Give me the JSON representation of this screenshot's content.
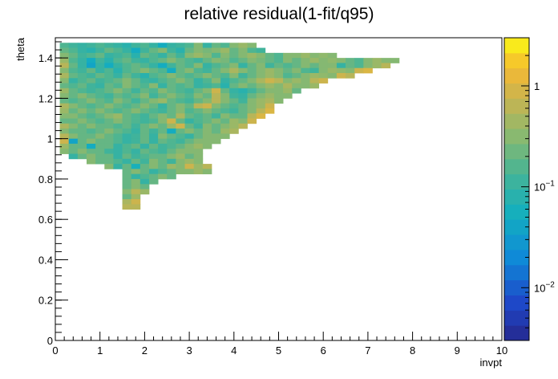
{
  "chart_data": {
    "type": "heatmap",
    "title": "relative residual(1-fit/q95)",
    "xlabel": "invpt",
    "ylabel": "theta",
    "xlim": [
      0,
      10
    ],
    "ylim": [
      0,
      1.5
    ],
    "x_ticks": [
      "0",
      "1",
      "2",
      "3",
      "4",
      "5",
      "6",
      "7",
      "8",
      "9",
      "10"
    ],
    "y_ticks": [
      "0",
      "0.2",
      "0.4",
      "0.6",
      "0.8",
      "1",
      "1.2",
      "1.4"
    ],
    "colorbar": {
      "scale": "log",
      "range": [
        0.003,
        3
      ],
      "tick_labels": [
        "10^-2",
        "10^-1",
        "1"
      ],
      "tick_values": [
        0.01,
        0.1,
        1
      ]
    },
    "grid": false,
    "cells": {
      "x_bin_width": 0.2,
      "y_bin_width": 0.025,
      "rows": [
        {
          "y": 1.45,
          "x_start": 0.1,
          "values": [
            0.15,
            0.12,
            0.1,
            0.12,
            0.15,
            0.12,
            0.1,
            0.08,
            0.12,
            0.15,
            0.1,
            0.05,
            0.1,
            0.12,
            0.15,
            0.3,
            0.1,
            0.2,
            0.15,
            0.3,
            0.4,
            0.3
          ]
        },
        {
          "y": 1.425,
          "x_start": 0.1,
          "values": [
            0.2,
            0.15,
            0.1,
            0.08,
            0.12,
            0.2,
            0.15,
            0.1,
            0.05,
            0.12,
            0.2,
            0.3,
            0.12,
            0.08,
            0.2,
            0.3,
            0.25,
            0.3,
            0.4,
            0.2,
            0.3,
            0.15,
            0.12
          ]
        },
        {
          "y": 1.4,
          "x_start": 0.1,
          "values": [
            0.3,
            0.2,
            0.12,
            0.15,
            0.2,
            0.1,
            0.12,
            0.15,
            0.08,
            0.2,
            0.15,
            0.1,
            0.2,
            0.12,
            0.3,
            0.4,
            0.3,
            0.15,
            0.3,
            0.2,
            0.3,
            0.4,
            0.3,
            0.2,
            0.15,
            0.3,
            0.3,
            0.4,
            0.3,
            0.35,
            0.3
          ]
        },
        {
          "y": 1.375,
          "x_start": 0.1,
          "values": [
            0.4,
            0.15,
            0.1,
            0.05,
            0.12,
            0.08,
            0.15,
            0.2,
            0.12,
            0.1,
            0.15,
            0.2,
            0.3,
            0.2,
            0.15,
            0.12,
            0.2,
            0.3,
            0.25,
            0.15,
            0.2,
            0.3,
            0.25,
            0.2,
            0.15,
            0.3,
            0.2,
            0.3,
            0.4,
            0.3,
            0.35,
            0.3,
            0.2,
            0.15,
            0.3,
            0.4,
            0.3,
            0.3
          ]
        },
        {
          "y": 1.35,
          "x_start": 0.1,
          "values": [
            0.6,
            0.2,
            0.1,
            0.04,
            0.1,
            0.05,
            0.1,
            0.15,
            0.2,
            0.15,
            0.1,
            0.05,
            0.12,
            0.2,
            0.15,
            0.3,
            0.1,
            0.15,
            0.2,
            0.3,
            0.1,
            0.2,
            0.3,
            0.12,
            0.2,
            0.15,
            0.2,
            0.3,
            0.2,
            0.3,
            0.3,
            0.1,
            0.2,
            0.15,
            0.3,
            0.4,
            0.6
          ]
        },
        {
          "y": 1.325,
          "x_start": 0.1,
          "values": [
            0.3,
            0.15,
            0.12,
            0.2,
            0.1,
            0.15,
            0.08,
            0.15,
            0.2,
            0.3,
            0.2,
            0.15,
            0.05,
            0.2,
            0.3,
            0.15,
            0.12,
            0.2,
            0.3,
            0.5,
            0.3,
            0.2,
            0.3,
            0.4,
            0.3,
            0.2,
            0.3,
            0.15,
            0.12,
            0.3,
            0.4,
            0.35,
            0.3,
            0.8,
            1.0
          ]
        },
        {
          "y": 1.3,
          "x_start": 0.1,
          "values": [
            0.5,
            0.2,
            0.15,
            0.12,
            0.2,
            0.15,
            0.1,
            0.2,
            0.12,
            0.08,
            0.15,
            0.2,
            0.3,
            0.2,
            0.15,
            0.2,
            0.3,
            0.2,
            0.15,
            0.3,
            0.12,
            0.2,
            0.3,
            0.4,
            0.3,
            0.15,
            0.2,
            0.3,
            0.4,
            0.35,
            0.3,
            0.8,
            0.6
          ]
        },
        {
          "y": 1.275,
          "x_start": 0.1,
          "values": [
            0.3,
            0.1,
            0.15,
            0.2,
            0.12,
            0.15,
            0.2,
            0.3,
            0.2,
            0.12,
            0.1,
            0.15,
            0.2,
            0.3,
            0.2,
            0.1,
            0.15,
            0.3,
            0.1,
            0.15,
            0.2,
            0.3,
            0.5,
            0.8,
            0.6,
            0.3,
            0.4,
            0.3,
            0.6,
            0.8
          ]
        },
        {
          "y": 1.25,
          "x_start": 0.1,
          "values": [
            0.2,
            0.15,
            0.2,
            0.12,
            0.1,
            0.2,
            0.15,
            0.3,
            0.2,
            0.15,
            0.3,
            0.1,
            0.2,
            0.15,
            0.2,
            0.1,
            0.12,
            0.15,
            0.08,
            0.2,
            0.3,
            0.2,
            0.3,
            0.4,
            0.3,
            0.5,
            0.3,
            0.3,
            0.4
          ]
        },
        {
          "y": 1.225,
          "x_start": 0.1,
          "values": [
            0.4,
            0.2,
            0.15,
            0.12,
            0.15,
            0.2,
            0.3,
            0.2,
            0.12,
            0.2,
            0.15,
            0.3,
            0.2,
            0.15,
            0.12,
            0.2,
            0.3,
            0.8,
            0.2,
            0.1,
            0.08,
            0.12,
            0.2,
            0.3,
            0.3,
            0.4,
            0.2
          ]
        },
        {
          "y": 1.2,
          "x_start": 0.1,
          "values": [
            0.3,
            0.2,
            0.3,
            0.2,
            0.15,
            0.12,
            0.2,
            0.15,
            0.2,
            0.3,
            0.12,
            0.2,
            0.3,
            0.2,
            0.15,
            0.3,
            0.2,
            0.6,
            0.3,
            0.12,
            0.1,
            0.2,
            0.3,
            0.4,
            0.3,
            0.3
          ]
        },
        {
          "y": 1.175,
          "x_start": 0.1,
          "values": [
            0.2,
            0.15,
            0.2,
            0.3,
            0.2,
            0.15,
            0.3,
            0.2,
            0.12,
            0.2,
            0.3,
            0.4,
            0.2,
            0.15,
            0.12,
            0.2,
            0.3,
            0.6,
            0.3,
            0.2,
            0.12,
            0.3,
            0.4,
            0.5,
            0.3
          ]
        },
        {
          "y": 1.15,
          "x_start": 0.1,
          "values": [
            0.5,
            0.3,
            0.2,
            0.15,
            0.2,
            0.3,
            0.2,
            0.15,
            0.2,
            0.3,
            0.2,
            0.1,
            0.2,
            0.3,
            0.2,
            0.6,
            0.8,
            0.3,
            0.2,
            0.15,
            0.2,
            0.3,
            0.4,
            0.8
          ]
        },
        {
          "y": 1.125,
          "x_start": 0.1,
          "values": [
            0.4,
            0.2,
            0.3,
            0.2,
            0.3,
            0.2,
            0.15,
            0.2,
            0.3,
            0.2,
            0.15,
            0.12,
            0.2,
            0.3,
            0.15,
            0.2,
            0.3,
            0.2,
            0.15,
            0.12,
            0.2,
            0.3,
            0.6,
            1.0
          ]
        },
        {
          "y": 1.1,
          "x_start": 0.1,
          "values": [
            0.3,
            0.3,
            0.2,
            0.15,
            0.2,
            0.3,
            0.4,
            0.2,
            0.15,
            0.12,
            0.2,
            0.3,
            0.2,
            0.5,
            0.2,
            0.15,
            0.2,
            0.12,
            0.3,
            0.2,
            0.2,
            0.6,
            1.0
          ]
        },
        {
          "y": 1.075,
          "x_start": 0.1,
          "values": [
            0.2,
            0.2,
            0.3,
            0.2,
            0.15,
            0.2,
            0.3,
            0.2,
            0.15,
            0.12,
            0.15,
            0.3,
            0.8,
            0.2,
            0.1,
            0.15,
            0.2,
            0.3,
            0.2,
            0.4,
            0.3,
            0.8
          ]
        },
        {
          "y": 1.05,
          "x_start": 0.1,
          "values": [
            0.5,
            0.3,
            0.2,
            0.3,
            0.2,
            0.2,
            0.15,
            0.2,
            0.12,
            0.2,
            0.3,
            0.2,
            0.4,
            0.8,
            0.2,
            0.12,
            0.3,
            0.2,
            0.3,
            0.4,
            0.6
          ]
        },
        {
          "y": 1.025,
          "x_start": 0.1,
          "values": [
            0.3,
            0.2,
            0.2,
            0.15,
            0.2,
            0.3,
            0.2,
            0.15,
            0.1,
            0.2,
            0.12,
            0.2,
            0.05,
            0.2,
            0.3,
            0.2,
            0.3,
            0.2,
            0.4,
            0.5
          ]
        },
        {
          "y": 1.0,
          "x_start": 0.1,
          "values": [
            0.6,
            0.3,
            0.2,
            0.2,
            0.3,
            0.2,
            0.15,
            0.1,
            0.12,
            0.2,
            0.1,
            0.3,
            0.2,
            0.15,
            0.1,
            0.2,
            0.3,
            0.3,
            0.3
          ]
        },
        {
          "y": 0.975,
          "x_start": 0.1,
          "values": [
            0.8,
            0.04,
            0.2,
            0.3,
            0.2,
            0.2,
            0.15,
            0.1,
            0.12,
            0.2,
            0.1,
            0.2,
            0.15,
            0.12,
            0.2,
            0.3,
            0.3,
            0.3
          ]
        },
        {
          "y": 0.95,
          "x_start": 0.1,
          "values": [
            0.4,
            0.2,
            0.2,
            0.05,
            0.2,
            0.2,
            0.1,
            0.15,
            0.2,
            0.1,
            0.2,
            0.12,
            0.15,
            0.2,
            0.3,
            0.4,
            0.3
          ]
        },
        {
          "y": 0.925,
          "x_start": 0.1,
          "values": [
            0.3,
            0.2,
            0.3,
            0.2,
            0.2,
            0.12,
            0.1,
            0.15,
            0.1,
            0.2,
            0.15,
            0.12,
            0.2,
            0.3,
            0.3,
            0.3
          ]
        },
        {
          "y": 0.9,
          "x_start": 0.3,
          "values": [
            0.1,
            0.2,
            0.3,
            0.2,
            0.2,
            0.1,
            0.2,
            0.12,
            0.15,
            0.2,
            0.2,
            0.3,
            0.4,
            0.2,
            0.3
          ]
        },
        {
          "y": 0.875,
          "x_start": 0.7,
          "values": [
            0.3,
            0.2,
            0.2,
            0.15,
            0.1,
            0.2,
            0.12,
            0.3,
            0.2,
            0.12,
            0.3,
            0.4,
            0.3
          ]
        },
        {
          "y": 0.85,
          "x_start": 1.1,
          "values": [
            0.3,
            0.1,
            0.2,
            0.06,
            0.2,
            0.3,
            0.2,
            0.4,
            0.3,
            0.8,
            0.4,
            0.6
          ]
        },
        {
          "y": 0.825,
          "x_start": 1.5,
          "values": [
            0.2,
            0.3,
            0.2,
            0.1,
            0.15,
            0.2,
            0.3,
            0.3,
            0.4,
            0.3
          ]
        },
        {
          "y": 0.8,
          "x_start": 1.5,
          "values": [
            0.2,
            0.1,
            0.15,
            0.2,
            0.3,
            0.2
          ]
        },
        {
          "y": 0.775,
          "x_start": 1.5,
          "values": [
            0.2,
            0.3,
            0.1,
            0.2
          ]
        },
        {
          "y": 0.75,
          "x_start": 1.5,
          "values": [
            0.2,
            0.3,
            0.2
          ]
        },
        {
          "y": 0.725,
          "x_start": 1.5,
          "values": [
            0.3,
            0.6,
            0.4
          ]
        },
        {
          "y": 0.7,
          "x_start": 1.5,
          "values": [
            0.2,
            0.4
          ]
        },
        {
          "y": 0.675,
          "x_start": 1.5,
          "values": [
            0.5,
            0.8
          ]
        },
        {
          "y": 0.65,
          "x_start": 1.5,
          "values": [
            0.6,
            0.6
          ]
        }
      ]
    }
  }
}
